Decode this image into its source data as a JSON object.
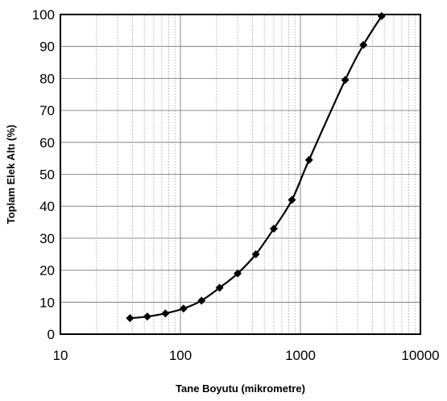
{
  "chart_data": {
    "type": "line",
    "title": "",
    "xlabel": "Tane Boyutu (mikrometre)",
    "ylabel": "Toplam Elek Altı (%)",
    "x_scale": "log",
    "xlim": [
      10,
      10000
    ],
    "ylim": [
      0,
      100
    ],
    "x_ticks": [
      "10",
      "100",
      "1000",
      "10000"
    ],
    "y_ticks": [
      "0",
      "10",
      "20",
      "30",
      "40",
      "50",
      "60",
      "70",
      "80",
      "90",
      "100"
    ],
    "grid": true,
    "legend": "none",
    "series": [
      {
        "color": "#000000",
        "marker": "diamond",
        "x": [
          38,
          53,
          75,
          106,
          150,
          212,
          300,
          425,
          600,
          850,
          1180,
          2360,
          3350,
          4750
        ],
        "y": [
          5,
          5.5,
          6.5,
          8,
          10.5,
          14.5,
          19,
          25,
          33,
          42,
          54.5,
          79.5,
          90.5,
          99.5
        ]
      }
    ]
  }
}
